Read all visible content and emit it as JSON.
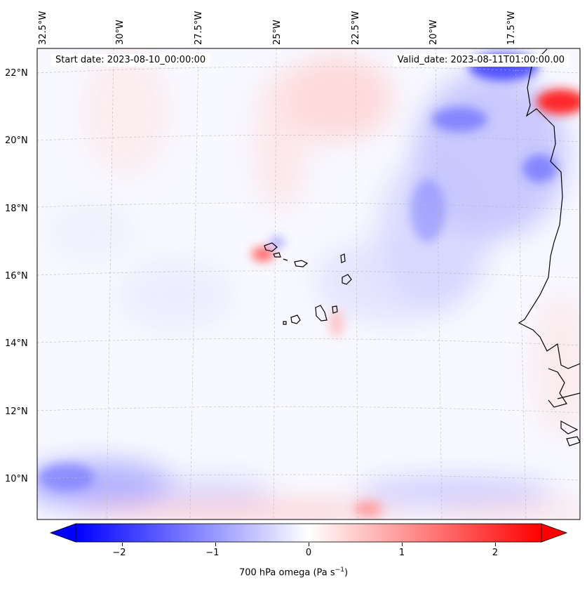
{
  "map": {
    "start_date": "Start date: 2023-08-10_00:00:00",
    "valid_date": "Valid_date: 2023-08-11T01:00:00.00",
    "lon_labels": [
      "32.5°W",
      "30°W",
      "27.5°W",
      "25°W",
      "22.5°W",
      "20°W",
      "17.5°W"
    ],
    "lat_labels": [
      "22°N",
      "20°N",
      "18°N",
      "16°N",
      "14°N",
      "12°N",
      "10°N"
    ],
    "colors": {
      "neg": "#0000ff",
      "zero": "#ffffff",
      "pos": "#ff0000",
      "coast": "#000000",
      "grid": "#b0b0b0"
    }
  },
  "colorbar": {
    "ticks": [
      "−2",
      "−1",
      "0",
      "1",
      "2"
    ],
    "tick_values": [
      -2,
      -1,
      0,
      1,
      2
    ],
    "range": [
      -2.6,
      2.6
    ],
    "label_text": "700 hPa omega (Pa s",
    "label_sup": "−1",
    "label_close": ")",
    "extend": "both"
  }
}
